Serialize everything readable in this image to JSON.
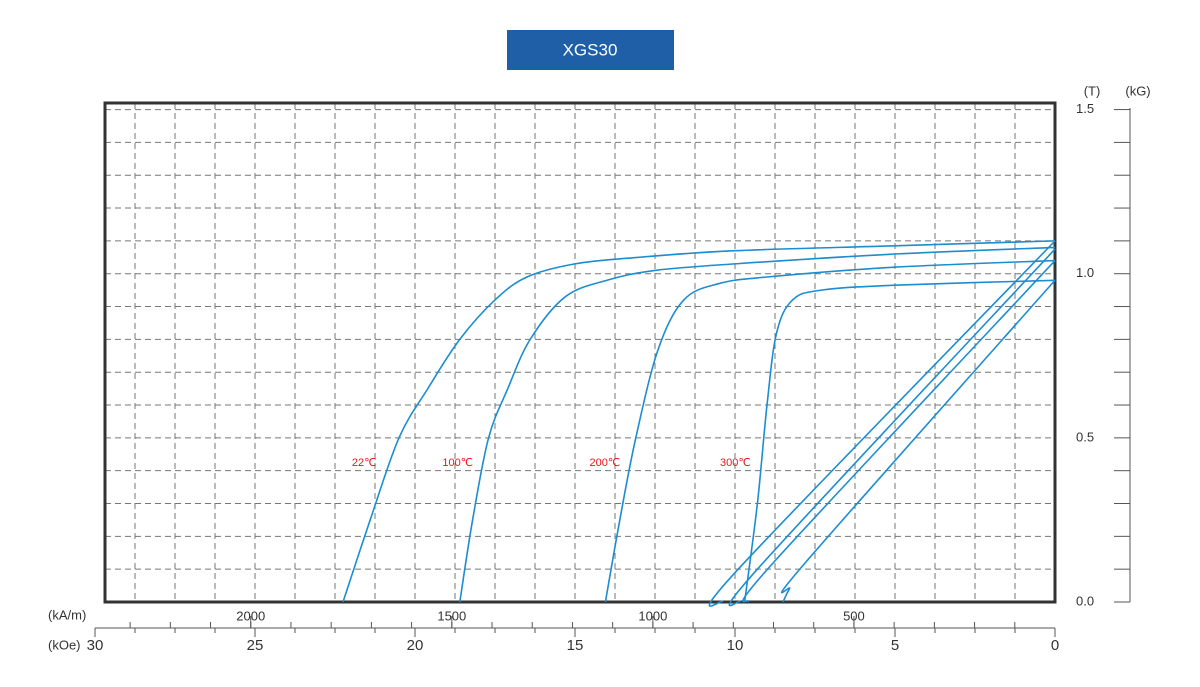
{
  "chart_data": {
    "type": "line",
    "title": "XGS30",
    "x_label": "(kOe)",
    "x2_label": "(kA/m)",
    "y_label": "(T)",
    "y2_label": "(kG)",
    "xlim": [
      30,
      0
    ],
    "xticks": [
      30,
      25,
      20,
      15,
      10,
      5,
      0
    ],
    "xgrid": [
      1.25,
      2.5,
      3.75,
      5,
      6.25,
      7.5,
      8.75,
      10,
      11.25,
      12.5,
      13.75,
      15,
      16.25,
      17.5,
      18.75,
      20,
      21.25,
      22.5,
      23.75,
      25,
      26.25,
      27.5,
      28.75
    ],
    "x2lim": [
      2387.3,
      0
    ],
    "x2ticks": [
      2000,
      1500,
      1000,
      500
    ],
    "x2tick_marks": [
      100,
      200,
      300,
      400,
      500,
      600,
      700,
      800,
      900,
      1000,
      1100,
      1200,
      1300,
      1400,
      1500,
      1600,
      1700,
      1800,
      1900,
      2000,
      2100,
      2200,
      2300
    ],
    "ylim": [
      0,
      1.52
    ],
    "yticks": [
      {
        "value": 0,
        "label": "0.0"
      },
      0.5,
      {
        "value": 1,
        "label": "1.0"
      },
      1.5
    ],
    "ygrid": [
      0.1,
      0.2,
      0.3,
      0.4,
      0.5,
      0.6,
      0.7,
      0.8,
      0.9,
      1.0,
      1.1,
      1.2,
      1.3,
      1.4,
      1.5
    ],
    "y2lim": [
      0,
      15.2
    ],
    "y2tick_marks": [
      0,
      1,
      2,
      3,
      4,
      5,
      6,
      7,
      8,
      9,
      10,
      11,
      12,
      13,
      14,
      15
    ],
    "grid": true,
    "label_color": "#e8141b",
    "series": [
      {
        "name": "22℃",
        "color": "#1b8dd0",
        "x": [
          0,
          5,
          10,
          13,
          15,
          16.5,
          17.5,
          18.6,
          19.6,
          20.5,
          21.4,
          22.25
        ],
        "values": [
          1.1,
          1.085,
          1.07,
          1.05,
          1.03,
          0.99,
          0.92,
          0.8,
          0.65,
          0.5,
          0.25,
          0
        ]
      },
      {
        "name": "100℃",
        "color": "#1b8dd0",
        "x": [
          0,
          5,
          10,
          12.5,
          14,
          15.3,
          16.4,
          17.1,
          17.7,
          18.2,
          18.6
        ],
        "values": [
          1.08,
          1.06,
          1.03,
          1.01,
          0.98,
          0.93,
          0.8,
          0.65,
          0.5,
          0.25,
          0
        ]
      },
      {
        "name": "200℃",
        "color": "#1b8dd0",
        "x": [
          0,
          5,
          9,
          10.5,
          11.6,
          12.4,
          13.1,
          13.6,
          14.05
        ],
        "values": [
          1.04,
          1.02,
          0.99,
          0.97,
          0.92,
          0.77,
          0.5,
          0.25,
          0
        ]
      },
      {
        "name": "300℃",
        "color": "#1b8dd0",
        "x": [
          0,
          5,
          7.3,
          8.2,
          8.7,
          9.0,
          9.3,
          9.7
        ],
        "values": [
          0.98,
          0.965,
          0.95,
          0.92,
          0.82,
          0.6,
          0.3,
          0
        ]
      },
      {
        "color": "#1b8dd0",
        "x": [
          0,
          9.9,
          10.4
        ],
        "values": [
          1.1,
          0.1,
          0
        ]
      },
      {
        "color": "#1b8dd0",
        "x": [
          0,
          9.3,
          9.85
        ],
        "values": [
          1.075,
          0.1,
          0
        ]
      },
      {
        "color": "#1b8dd0",
        "x": [
          0,
          8.8,
          9.6
        ],
        "values": [
          1.04,
          0.12,
          0
        ]
      },
      {
        "color": "#1b8dd0",
        "x": [
          0,
          7.8,
          8.3,
          8.5
        ],
        "values": [
          0.98,
          0.12,
          0.04,
          0
        ]
      }
    ]
  }
}
